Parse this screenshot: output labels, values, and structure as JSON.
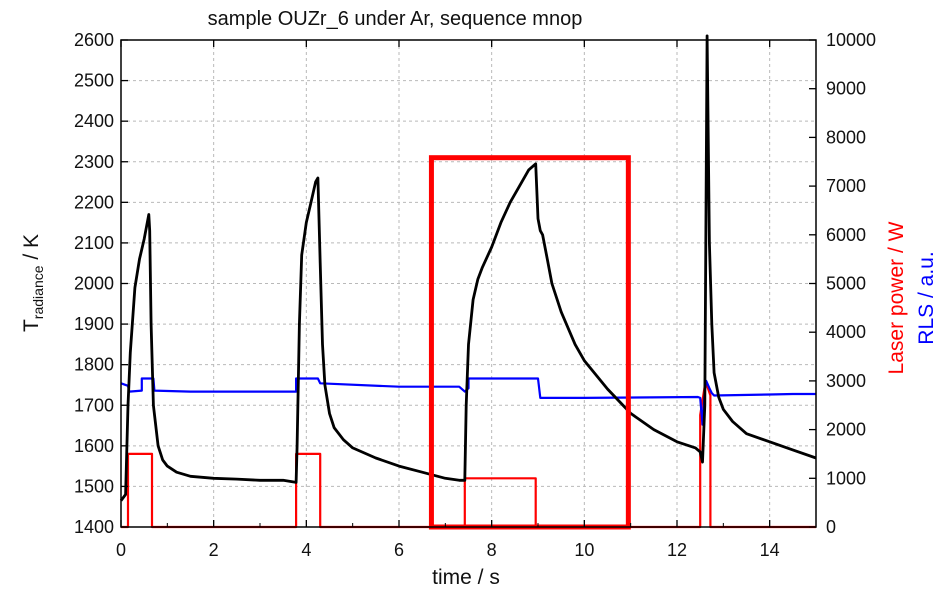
{
  "chart_data": {
    "type": "line",
    "title": "sample OUZr_6 under Ar, sequence mnop",
    "xlabel": "time / s",
    "ylabel_main": "T",
    "ylabel_sub": "radiance",
    "ylabel_unit": " / K",
    "y2label_laser": "Laser power / W",
    "y2label_rls": "RLS / a.u.",
    "xlim": [
      0,
      15
    ],
    "ylim": [
      1400,
      2600
    ],
    "y2lim": [
      0,
      10000
    ],
    "x_ticks": [
      "0",
      "2",
      "4",
      "6",
      "8",
      "10",
      "12",
      "14"
    ],
    "y_ticks": [
      "1400",
      "1500",
      "1600",
      "1700",
      "1800",
      "1900",
      "2000",
      "2100",
      "2200",
      "2300",
      "2400",
      "2500",
      "2600"
    ],
    "y2_ticks": [
      "0",
      "1000",
      "2000",
      "3000",
      "4000",
      "5000",
      "6000",
      "7000",
      "8000",
      "9000",
      "10000"
    ],
    "grid": true,
    "colors": {
      "temperature": "#000000",
      "laser": "#ff0000",
      "rls": "#0000ff",
      "highlight": "#ff0000",
      "laser_label": "#ff0000",
      "rls_label": "#0000ff"
    },
    "highlight_box": {
      "x": [
        6.7,
        10.95
      ],
      "y": [
        1400,
        2310
      ]
    },
    "series": [
      {
        "axis": "left",
        "color": "#000000",
        "x": [
          0,
          0.1,
          0.15,
          0.2,
          0.3,
          0.4,
          0.5,
          0.55,
          0.6,
          0.62,
          0.65,
          0.7,
          0.8,
          0.9,
          1.0,
          1.2,
          1.5,
          2.0,
          2.5,
          3.0,
          3.5,
          3.78,
          3.8,
          3.85,
          3.9,
          4.0,
          4.1,
          4.2,
          4.25,
          4.3,
          4.35,
          4.4,
          4.5,
          4.6,
          4.8,
          5.0,
          5.5,
          6.0,
          6.5,
          7.0,
          7.3,
          7.42,
          7.45,
          7.5,
          7.6,
          7.7,
          7.8,
          8.0,
          8.2,
          8.4,
          8.6,
          8.8,
          8.9,
          8.95,
          9.0,
          9.05,
          9.1,
          9.2,
          9.3,
          9.5,
          9.8,
          10.0,
          10.5,
          11.0,
          11.5,
          12.0,
          12.4,
          12.5,
          12.55,
          12.6,
          12.65,
          12.7,
          12.75,
          12.8,
          12.9,
          13.0,
          13.2,
          13.5,
          14.0,
          14.5,
          15.0
        ],
        "y": [
          1465,
          1480,
          1700,
          1830,
          1990,
          2060,
          2110,
          2140,
          2170,
          2130,
          1900,
          1700,
          1600,
          1565,
          1550,
          1535,
          1525,
          1520,
          1518,
          1515,
          1515,
          1510,
          1600,
          1900,
          2070,
          2150,
          2200,
          2250,
          2260,
          2050,
          1850,
          1750,
          1680,
          1645,
          1615,
          1595,
          1570,
          1550,
          1535,
          1520,
          1515,
          1515,
          1700,
          1850,
          1960,
          2010,
          2040,
          2090,
          2150,
          2200,
          2240,
          2280,
          2290,
          2295,
          2160,
          2130,
          2120,
          2060,
          2000,
          1930,
          1850,
          1810,
          1740,
          1680,
          1640,
          1610,
          1595,
          1585,
          1560,
          1700,
          2610,
          2100,
          1900,
          1780,
          1720,
          1690,
          1660,
          1630,
          1610,
          1590,
          1570
        ]
      },
      {
        "axis": "right",
        "name": "Laser power / W",
        "color": "#ff0000",
        "x": [
          0,
          0.15,
          0.15,
          0.67,
          0.67,
          3.78,
          3.78,
          4.3,
          4.3,
          7.42,
          7.42,
          8.95,
          8.95,
          12.5,
          12.5,
          12.6,
          12.65,
          12.72,
          12.72,
          15
        ],
        "y": [
          0,
          0,
          1500,
          1500,
          0,
          0,
          1500,
          1500,
          0,
          0,
          1000,
          1000,
          0,
          0,
          2300,
          2900,
          2900,
          2700,
          0,
          0
        ]
      },
      {
        "axis": "right",
        "name": "RLS / a.u.",
        "color": "#0000ff",
        "x": [
          0,
          0.15,
          0.18,
          0.45,
          0.45,
          0.7,
          0.72,
          1.5,
          3.7,
          3.78,
          3.78,
          4.25,
          4.3,
          6.0,
          7.3,
          7.42,
          7.5,
          7.5,
          9.0,
          9.05,
          9.1,
          10.0,
          12.45,
          12.5,
          12.55,
          12.6,
          12.63,
          12.7,
          12.75,
          12.8,
          14.0,
          14.5,
          15.0
        ],
        "y": [
          2950,
          2900,
          2780,
          2800,
          3050,
          3050,
          2800,
          2780,
          2780,
          2780,
          3050,
          3050,
          2950,
          2880,
          2880,
          2780,
          2850,
          3050,
          3050,
          2650,
          2650,
          2650,
          2670,
          2650,
          2100,
          2800,
          3000,
          2850,
          2750,
          2700,
          2720,
          2730,
          2730
        ]
      }
    ]
  }
}
